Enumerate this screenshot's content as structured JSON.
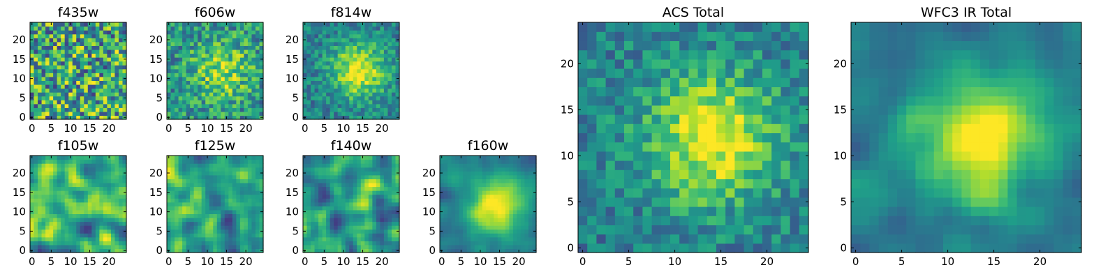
{
  "chart_data": [
    {
      "type": "heatmap",
      "title": "f435w",
      "xticks": [
        0,
        5,
        10,
        15,
        20
      ],
      "yticks": [
        0,
        5,
        10,
        15,
        20
      ],
      "xlim": [
        -0.5,
        24.5
      ],
      "ylim": [
        -0.5,
        24.5
      ],
      "grid_size": 25,
      "colormap": "viridis",
      "pattern": "noise"
    },
    {
      "type": "heatmap",
      "title": "f606w",
      "xticks": [
        0,
        5,
        10,
        15,
        20
      ],
      "yticks": [
        0,
        5,
        10,
        15,
        20
      ],
      "xlim": [
        -0.5,
        24.5
      ],
      "ylim": [
        -0.5,
        24.5
      ],
      "grid_size": 25,
      "colormap": "viridis",
      "pattern": "faint-center"
    },
    {
      "type": "heatmap",
      "title": "f814w",
      "xticks": [
        0,
        5,
        10,
        15,
        20
      ],
      "yticks": [
        0,
        5,
        10,
        15,
        20
      ],
      "xlim": [
        -0.5,
        24.5
      ],
      "ylim": [
        -0.5,
        24.5
      ],
      "grid_size": 25,
      "colormap": "viridis",
      "pattern": "center"
    },
    {
      "type": "heatmap",
      "title": "f105w",
      "xticks": [
        0,
        5,
        10,
        15,
        20
      ],
      "yticks": [
        0,
        5,
        10,
        15,
        20
      ],
      "xlim": [
        -0.5,
        24.5
      ],
      "ylim": [
        -0.5,
        24.5
      ],
      "grid_size": 25,
      "colormap": "viridis",
      "pattern": "smooth"
    },
    {
      "type": "heatmap",
      "title": "f125w",
      "xticks": [
        0,
        5,
        10,
        15,
        20
      ],
      "yticks": [
        0,
        5,
        10,
        15,
        20
      ],
      "xlim": [
        -0.5,
        24.5
      ],
      "ylim": [
        -0.5,
        24.5
      ],
      "grid_size": 25,
      "colormap": "viridis",
      "pattern": "smooth"
    },
    {
      "type": "heatmap",
      "title": "f140w",
      "xticks": [
        0,
        5,
        10,
        15,
        20
      ],
      "yticks": [
        0,
        5,
        10,
        15,
        20
      ],
      "xlim": [
        -0.5,
        24.5
      ],
      "ylim": [
        -0.5,
        24.5
      ],
      "grid_size": 25,
      "colormap": "viridis",
      "pattern": "smooth"
    },
    {
      "type": "heatmap",
      "title": "f160w",
      "xticks": [
        0,
        5,
        10,
        15,
        20
      ],
      "yticks": [
        0,
        5,
        10,
        15,
        20
      ],
      "xlim": [
        -0.5,
        24.5
      ],
      "ylim": [
        -0.5,
        24.5
      ],
      "grid_size": 25,
      "colormap": "viridis",
      "pattern": "smooth-center"
    },
    {
      "type": "heatmap",
      "title": "ACS Total",
      "xticks": [
        0,
        5,
        10,
        15,
        20
      ],
      "yticks": [
        0,
        5,
        10,
        15,
        20
      ],
      "xlim": [
        -0.5,
        24.5
      ],
      "ylim": [
        -0.5,
        24.5
      ],
      "grid_size": 25,
      "colormap": "viridis",
      "pattern": "center"
    },
    {
      "type": "heatmap",
      "title": "WFC3 IR Total",
      "xticks": [
        0,
        5,
        10,
        15,
        20
      ],
      "yticks": [
        0,
        5,
        10,
        15,
        20
      ],
      "xlim": [
        -0.5,
        24.5
      ],
      "ylim": [
        -0.5,
        24.5
      ],
      "grid_size": 25,
      "colormap": "viridis",
      "pattern": "smooth-center"
    }
  ]
}
